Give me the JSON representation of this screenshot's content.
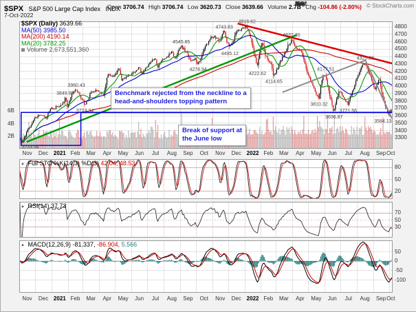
{
  "header": {
    "symbol": "$SPX",
    "name": "S&P 500 Large Cap Index",
    "exchange": "INDX",
    "date": "7-Oct-2022",
    "copyright": "© StockCharts.com",
    "quote": [
      {
        "label": "Open",
        "value": "3706.74"
      },
      {
        "label": "High",
        "value": "3706.74"
      },
      {
        "label": "Low",
        "value": "3620.73"
      },
      {
        "label": "Close",
        "value": "3639.66"
      },
      {
        "label": "Volume",
        "value": "2.7B"
      },
      {
        "label": "Chg",
        "value": "-104.86 (-2.80%)"
      }
    ]
  },
  "legend": {
    "main": {
      "label": "$SPX (Daily)",
      "value": "3639.66"
    },
    "ma50": {
      "label": "MA(50)",
      "value": "3985.50",
      "color": "#0000cc"
    },
    "ma200": {
      "label": "MA(200)",
      "value": "4190.14",
      "color": "#cc0000"
    },
    "ma20": {
      "label": "MA(20)",
      "value": "3782.25",
      "color": "#009900"
    },
    "volume": {
      "label": "Volume",
      "value": "2,673,551,360",
      "color": "#777777"
    }
  },
  "annotations": {
    "hs": {
      "line1": "Benchmark rejected from the neckline to a",
      "line2": "head-and-shoulders topping pattern"
    },
    "break": {
      "line1": "Break of support at",
      "line2": "the June low"
    }
  },
  "panels": {
    "sto": {
      "label": "Full STO %K(14,3) %D(3)",
      "values": "42.04, 48.53",
      "ticks": [
        80,
        50,
        20
      ]
    },
    "rsi": {
      "label": "RSI(14)",
      "value": "37.73",
      "ticks": [
        70,
        50,
        30
      ]
    },
    "macd": {
      "label": "MACD(12,26,9)",
      "values": [
        "-81.337,",
        "-86.904,",
        "5.566"
      ],
      "ticks": [
        50,
        0,
        -50,
        -100
      ]
    }
  },
  "chart_data": {
    "type": "candlestick",
    "title": "$SPX daily candlesticks with MA(20), MA(50), MA(200), volume, Full Stochastic, RSI and MACD",
    "date_range": [
      "Nov 2020",
      "Oct 2022"
    ],
    "price_axis": {
      "min": 3150,
      "max": 4870,
      "ticks": [
        3300,
        3400,
        3500,
        3600,
        3700,
        3800,
        3900,
        4000,
        4100,
        4200,
        4300,
        4400,
        4500,
        4600,
        4700,
        4800
      ]
    },
    "volume_ticks": [
      {
        "label": "6B",
        "value": 6
      },
      {
        "label": "4B",
        "value": 4
      },
      {
        "label": "2B",
        "value": 2
      }
    ],
    "volume_max_b": 7.5,
    "month_boundaries_days": [
      0,
      30,
      61,
      92,
      120,
      151,
      181,
      212,
      242,
      273,
      304,
      334,
      365,
      395,
      426,
      457,
      485,
      516,
      546,
      577,
      607,
      638,
      669,
      699,
      706
    ],
    "month_labels": [
      {
        "label": "Nov"
      },
      {
        "label": "Dec"
      },
      {
        "label": "2021",
        "bold": true
      },
      {
        "label": "Feb"
      },
      {
        "label": "Mar"
      },
      {
        "label": "Apr"
      },
      {
        "label": "May"
      },
      {
        "label": "Jun"
      },
      {
        "label": "Jul"
      },
      {
        "label": "Aug"
      },
      {
        "label": "Sep"
      },
      {
        "label": "Oct"
      },
      {
        "label": "Nov"
      },
      {
        "label": "Dec"
      },
      {
        "label": "2022",
        "bold": true
      },
      {
        "label": "Feb"
      },
      {
        "label": "Mar"
      },
      {
        "label": "Apr"
      },
      {
        "label": "May"
      },
      {
        "label": "Jun"
      },
      {
        "label": "Jul"
      },
      {
        "label": "Aug"
      },
      {
        "label": "Sep"
      },
      {
        "label": "Oct"
      }
    ],
    "price_anchors": [
      [
        0.0,
        3290
      ],
      [
        0.006,
        3240
      ],
      [
        0.02,
        3390
      ],
      [
        0.04,
        3560
      ],
      [
        0.055,
        3620
      ],
      [
        0.07,
        3585
      ],
      [
        0.085,
        3700
      ],
      [
        0.1,
        3726
      ],
      [
        0.115,
        3770
      ],
      [
        0.123,
        3845
      ],
      [
        0.128,
        3705
      ],
      [
        0.14,
        3880
      ],
      [
        0.153,
        3945
      ],
      [
        0.165,
        3830
      ],
      [
        0.176,
        3735
      ],
      [
        0.19,
        3915
      ],
      [
        0.21,
        3960
      ],
      [
        0.225,
        3885
      ],
      [
        0.237,
        4165
      ],
      [
        0.252,
        4135
      ],
      [
        0.267,
        4230
      ],
      [
        0.274,
        4070
      ],
      [
        0.29,
        4150
      ],
      [
        0.31,
        4190
      ],
      [
        0.322,
        4250
      ],
      [
        0.326,
        4170
      ],
      [
        0.34,
        4230
      ],
      [
        0.363,
        4385
      ],
      [
        0.37,
        4245
      ],
      [
        0.39,
        4400
      ],
      [
        0.41,
        4470
      ],
      [
        0.414,
        4370
      ],
      [
        0.434,
        4535
      ],
      [
        0.447,
        4450
      ],
      [
        0.46,
        4320
      ],
      [
        0.47,
        4365
      ],
      [
        0.479,
        4290
      ],
      [
        0.5,
        4560
      ],
      [
        0.52,
        4680
      ],
      [
        0.535,
        4600
      ],
      [
        0.549,
        4735
      ],
      [
        0.556,
        4590
      ],
      [
        0.564,
        4505
      ],
      [
        0.58,
        4690
      ],
      [
        0.595,
        4775
      ],
      [
        0.61,
        4795
      ],
      [
        0.625,
        4530
      ],
      [
        0.638,
        4245
      ],
      [
        0.645,
        4460
      ],
      [
        0.651,
        4575
      ],
      [
        0.66,
        4390
      ],
      [
        0.675,
        4315
      ],
      [
        0.682,
        4135
      ],
      [
        0.695,
        4270
      ],
      [
        0.71,
        4420
      ],
      [
        0.729,
        4620
      ],
      [
        0.745,
        4505
      ],
      [
        0.76,
        4400
      ],
      [
        0.775,
        4145
      ],
      [
        0.79,
        3955
      ],
      [
        0.803,
        3835
      ],
      [
        0.813,
        4135
      ],
      [
        0.821,
        4155
      ],
      [
        0.83,
        3935
      ],
      [
        0.843,
        3660
      ],
      [
        0.858,
        3940
      ],
      [
        0.87,
        3835
      ],
      [
        0.881,
        3745
      ],
      [
        0.9,
        4000
      ],
      [
        0.915,
        4215
      ],
      [
        0.927,
        4305
      ],
      [
        0.94,
        4155
      ],
      [
        0.955,
        3935
      ],
      [
        0.966,
        4095
      ],
      [
        0.975,
        3875
      ],
      [
        0.985,
        3685
      ],
      [
        0.991,
        3605
      ],
      [
        0.996,
        3675
      ],
      [
        1.0,
        3640
      ]
    ],
    "swing_labels": [
      {
        "t": 0.004,
        "p": 3233.94,
        "text": "3233.94",
        "pos": "below"
      },
      {
        "t": 0.123,
        "p": 3849.95,
        "text": "3849.95",
        "pos": "above"
      },
      {
        "t": 0.153,
        "p": 3960.43,
        "text": "3960.43",
        "pos": "above"
      },
      {
        "t": 0.176,
        "p": 3723.34,
        "text": "3723.34",
        "pos": "below"
      },
      {
        "t": 0.434,
        "p": 4545.85,
        "text": "4545.85",
        "pos": "above"
      },
      {
        "t": 0.479,
        "p": 4278.94,
        "text": "4278.94",
        "pos": "below"
      },
      {
        "t": 0.549,
        "p": 4743.83,
        "text": "4743.83",
        "pos": "above"
      },
      {
        "t": 0.564,
        "p": 4495.12,
        "text": "4495.12",
        "pos": "below"
      },
      {
        "t": 0.61,
        "p": 4818.62,
        "text": "4818.62",
        "pos": "above"
      },
      {
        "t": 0.638,
        "p": 4222.62,
        "text": "4222.62",
        "pos": "below"
      },
      {
        "t": 0.682,
        "p": 4114.65,
        "text": "4114.65",
        "pos": "below"
      },
      {
        "t": 0.729,
        "p": 4637.3,
        "text": "4637.30",
        "pos": "above"
      },
      {
        "t": 0.803,
        "p": 3810.32,
        "text": "3810.32",
        "pos": "below"
      },
      {
        "t": 0.821,
        "p": 4177.51,
        "text": "4177.51",
        "pos": "above"
      },
      {
        "t": 0.843,
        "p": 3636.87,
        "text": "3636.87",
        "pos": "below"
      },
      {
        "t": 0.881,
        "p": 3721.56,
        "text": "3721.56",
        "pos": "below"
      },
      {
        "t": 0.927,
        "p": 4325.28,
        "text": "4325.28",
        "pos": "above"
      },
      {
        "t": 0.991,
        "p": 3584.13,
        "text": "3584.13",
        "pos": "below"
      }
    ],
    "overlays": {
      "uptrend_line": {
        "from": [
          0.02,
          3243
        ],
        "to": [
          0.742,
          4684
        ],
        "color": "#009900",
        "width": 2.5
      },
      "downtrend_line": {
        "from": [
          0.585,
          4840
        ],
        "to": [
          1.0,
          4300
        ],
        "color": "#dd0000",
        "width": 2.5
      },
      "support_line": {
        "from": [
          0.165,
          3640
        ],
        "to": [
          1.0,
          3640
        ],
        "color": "#0000dd",
        "width": 1.8
      },
      "support_box": {
        "t1": 0.005,
        "t2": 0.165,
        "p1": 3195,
        "p2": 3640,
        "color": "#0000dd",
        "width": 1.5
      },
      "neckline": {
        "points": [
          [
            0.705,
            3913
          ],
          [
            0.927,
            4345
          ],
          [
            0.998,
            3560
          ]
        ],
        "color": "#8c8c8c",
        "width": 2
      }
    },
    "indicators": {
      "sto": {
        "k": 42.04,
        "d": 48.53,
        "overbought": 80,
        "oversold": 20
      },
      "rsi": {
        "value": 37.73,
        "overbought": 70,
        "oversold": 30
      },
      "macd": {
        "macd": -81.337,
        "signal": -86.904,
        "hist": 5.566
      }
    },
    "last": {
      "open": 3706.74,
      "high": 3706.74,
      "low": 3620.73,
      "close": 3639.66,
      "volume_b": 2.7,
      "chg": "-104.86",
      "chg_pct": "-2.80%"
    }
  }
}
